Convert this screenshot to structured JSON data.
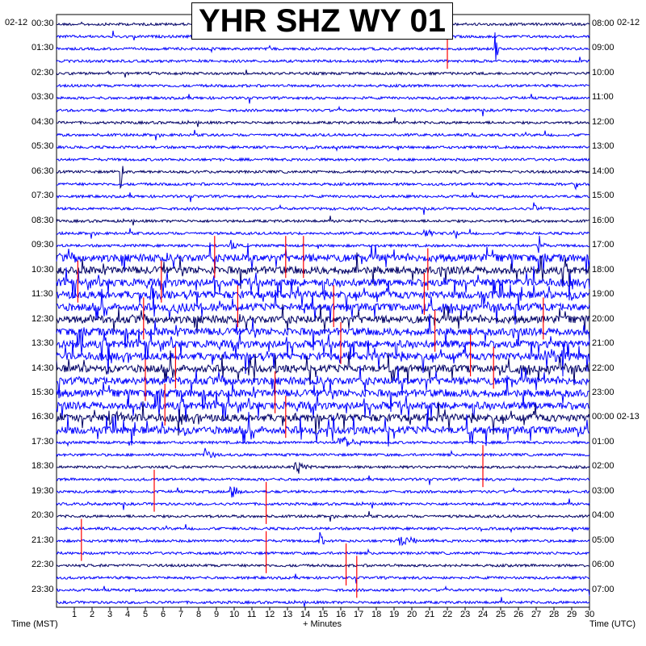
{
  "title": "YHR SHZ WY 01",
  "colors": {
    "background": "#ffffff",
    "trace_dark": "#000066",
    "trace_blue": "#0000ff",
    "pick_red": "#ff0000",
    "text": "#000000"
  },
  "date_left": "02-12",
  "date_right": "02-12",
  "left_axis_label": "Time (MST)",
  "right_axis_label": "Time (UTC)",
  "bottom_axis_label": "+ Minutes",
  "chart_data": {
    "type": "line",
    "title": "YHR SHZ WY 01",
    "xlabel": "+ Minutes",
    "ylabel_left": "Time (MST)",
    "ylabel_right": "Time (UTC)",
    "xlim": [
      0,
      30
    ],
    "x_ticks": [
      "1",
      "2",
      "3",
      "4",
      "5",
      "6",
      "7",
      "8",
      "9",
      "10",
      "11",
      "12",
      "13",
      "14",
      "15",
      "16",
      "17",
      "18",
      "19",
      "20",
      "21",
      "22",
      "23",
      "24",
      "25",
      "26",
      "27",
      "28",
      "29",
      "30"
    ],
    "rows_per_hour": 2,
    "row_count": 48,
    "left_ticks": [
      "00:30",
      "01:30",
      "02:30",
      "03:30",
      "04:30",
      "05:30",
      "06:30",
      "07:30",
      "08:30",
      "09:30",
      "10:30",
      "11:30",
      "12:30",
      "13:30",
      "14:30",
      "15:30",
      "16:30",
      "17:30",
      "18:30",
      "19:30",
      "20:30",
      "21:30",
      "22:30",
      "23:30"
    ],
    "right_ticks": [
      "08:00",
      "09:00",
      "10:00",
      "11:00",
      "12:00",
      "13:00",
      "14:00",
      "15:00",
      "16:00",
      "17:00",
      "18:00",
      "19:00",
      "20:00",
      "21:00",
      "22:00",
      "23:00",
      "00:00 02-13",
      "01:00",
      "02:00",
      "03:00",
      "04:00",
      "05:00",
      "06:00",
      "07:00"
    ],
    "trace_color_cycle": [
      "dark",
      "blue",
      "blue",
      "blue"
    ],
    "events": [
      {
        "row": 2,
        "minute": 24.7,
        "amp": 28,
        "dur": 0.25
      },
      {
        "row": 12,
        "minute": 3.6,
        "amp": 30,
        "dur": 0.2
      },
      {
        "row": 13,
        "minute": 29.2,
        "amp": 10,
        "dur": 0.3
      },
      {
        "row": 15,
        "minute": 26.9,
        "amp": 7,
        "dur": 0.6
      },
      {
        "row": 17,
        "minute": 20.7,
        "amp": 6,
        "dur": 0.8
      },
      {
        "row": 17,
        "minute": 22.5,
        "amp": 8,
        "dur": 0.3
      },
      {
        "row": 18,
        "minute": 9.8,
        "amp": 6,
        "dur": 0.6
      },
      {
        "row": 18,
        "minute": 27.1,
        "amp": 18,
        "dur": 0.5
      },
      {
        "row": 22,
        "minute": 5.3,
        "amp": 14,
        "dur": 0.8
      },
      {
        "row": 23,
        "minute": 6.6,
        "amp": 12,
        "dur": 1.0
      },
      {
        "row": 23,
        "minute": 14.0,
        "amp": 9,
        "dur": 0.7
      },
      {
        "row": 27,
        "minute": 27.5,
        "amp": 20,
        "dur": 1.4
      },
      {
        "row": 32,
        "minute": 3.0,
        "amp": 12,
        "dur": 1.2
      },
      {
        "row": 34,
        "minute": 15.9,
        "amp": 14,
        "dur": 1.4
      },
      {
        "row": 35,
        "minute": 8.3,
        "amp": 12,
        "dur": 0.8
      },
      {
        "row": 36,
        "minute": 13.4,
        "amp": 12,
        "dur": 1.0
      },
      {
        "row": 38,
        "minute": 9.8,
        "amp": 16,
        "dur": 0.6
      },
      {
        "row": 42,
        "minute": 14.8,
        "amp": 12,
        "dur": 0.4
      },
      {
        "row": 42,
        "minute": 19.3,
        "amp": 14,
        "dur": 1.0
      }
    ],
    "noisy_rows": [
      19,
      20,
      21,
      22,
      23,
      24,
      25,
      26,
      27,
      28,
      29,
      30,
      31,
      32,
      33
    ],
    "red_picks": [
      {
        "row": 1,
        "minute": 22.0
      },
      {
        "row": 18,
        "minute": 8.9
      },
      {
        "row": 18,
        "minute": 12.9
      },
      {
        "row": 18,
        "minute": 13.9
      },
      {
        "row": 19,
        "minute": 20.9
      },
      {
        "row": 20,
        "minute": 1.2
      },
      {
        "row": 20,
        "minute": 5.9
      },
      {
        "row": 21,
        "minute": 20.7
      },
      {
        "row": 22,
        "minute": 10.2
      },
      {
        "row": 22,
        "minute": 15.6
      },
      {
        "row": 23,
        "minute": 27.4
      },
      {
        "row": 23,
        "minute": 4.9
      },
      {
        "row": 24,
        "minute": 21.3
      },
      {
        "row": 25,
        "minute": 16.0
      },
      {
        "row": 26,
        "minute": 23.3
      },
      {
        "row": 27,
        "minute": 6.7
      },
      {
        "row": 27,
        "minute": 24.6
      },
      {
        "row": 28,
        "minute": 5.0
      },
      {
        "row": 29,
        "minute": 12.3
      },
      {
        "row": 30,
        "minute": 6.1
      },
      {
        "row": 31,
        "minute": 12.9
      },
      {
        "row": 35,
        "minute": 24.0
      },
      {
        "row": 37,
        "minute": 5.5
      },
      {
        "row": 38,
        "minute": 11.8
      },
      {
        "row": 41,
        "minute": 1.4
      },
      {
        "row": 42,
        "minute": 11.8
      },
      {
        "row": 43,
        "minute": 16.3
      },
      {
        "row": 44,
        "minute": 16.9
      }
    ]
  }
}
